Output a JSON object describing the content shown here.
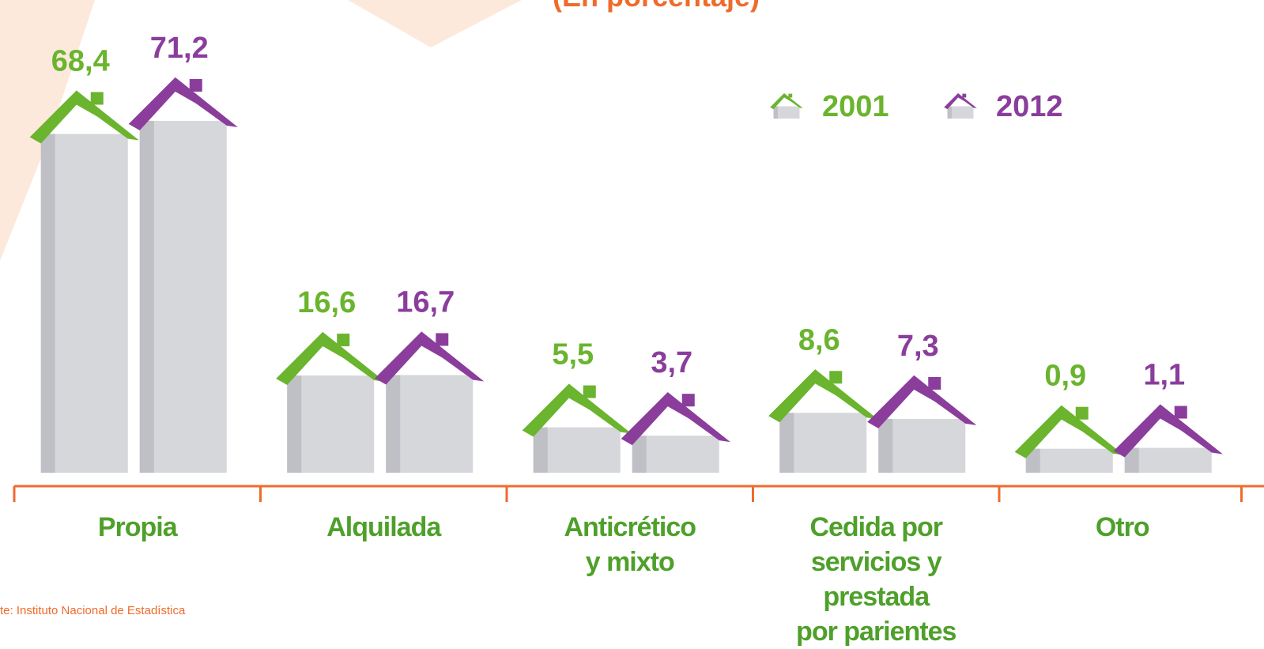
{
  "chart_data": {
    "type": "bar",
    "title": "(En porcentaje)",
    "source": "te: Instituto Nacional de Estadística",
    "categories": [
      "Propia",
      "Alquilada",
      "Anticrético\ny mixto",
      "Cedida por\nservicios y prestada\npor parientes",
      "Otro"
    ],
    "series": [
      {
        "name": "2001",
        "color": "#6ab42e",
        "values": [
          68.4,
          16.6,
          5.5,
          8.6,
          0.9
        ],
        "value_labels": [
          "68,4",
          "16,6",
          "5,5",
          "8,6",
          "0,9"
        ]
      },
      {
        "name": "2012",
        "color": "#8b3d9c",
        "values": [
          71.2,
          16.7,
          3.7,
          7.3,
          1.1
        ],
        "value_labels": [
          "71,2",
          "16,7",
          "3,7",
          "7,3",
          "1,1"
        ]
      }
    ],
    "axis_color": "#ef6b2c",
    "label_color": "#4ea02a",
    "wall_color": "#d6d7db"
  }
}
